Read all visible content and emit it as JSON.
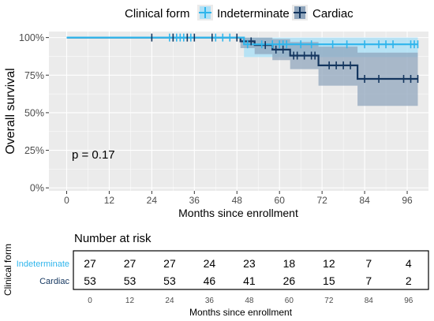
{
  "legend": {
    "title": "Clinical form",
    "items": [
      {
        "label": "Indeterminate",
        "color": "#2fb5ec"
      },
      {
        "label": "Cardiac",
        "color": "#14365f"
      }
    ]
  },
  "annotation": "p = 0.17",
  "colors": {
    "panel": "#ebebeb",
    "grid": "#ffffff",
    "indeterminate_band": "#aee0f6",
    "cardiac_band": "#8ea4bb"
  },
  "chart_data": [
    {
      "type": "line",
      "subtype": "kaplan-meier",
      "xlabel": "Months since enrollment",
      "ylabel": "Overall survival",
      "xlim": [
        -5,
        102
      ],
      "ylim": [
        -0.02,
        1.04
      ],
      "x_ticks": [
        0,
        12,
        24,
        36,
        48,
        60,
        72,
        84,
        96
      ],
      "y_ticks": [
        {
          "value": 0,
          "label": "0%"
        },
        {
          "value": 0.25,
          "label": "25%"
        },
        {
          "value": 0.5,
          "label": "50%"
        },
        {
          "value": 0.75,
          "label": "75%"
        },
        {
          "value": 1,
          "label": "100%"
        }
      ],
      "grid": true,
      "legend_position": "top",
      "series": [
        {
          "name": "Indeterminate",
          "color": "#2fb5ec",
          "x": [
            0,
            50
          ],
          "y": [
            1.0,
            0.955
          ],
          "x_end": 99,
          "ci": {
            "x": [
              0,
              50
            ],
            "lower": [
              1.0,
              0.87
            ],
            "upper": [
              1.0,
              1.0
            ]
          },
          "censored": [
            29,
            30,
            31,
            32,
            33,
            35,
            42,
            44,
            46,
            51,
            55,
            58,
            60,
            61,
            62,
            66,
            69,
            75,
            79,
            84,
            88,
            90,
            92,
            97,
            98,
            99
          ]
        },
        {
          "name": "Cardiac",
          "color": "#14365f",
          "x": [
            0,
            49,
            53,
            58,
            63,
            71,
            82
          ],
          "y": [
            1.0,
            0.975,
            0.95,
            0.92,
            0.88,
            0.815,
            0.725
          ],
          "x_end": 99,
          "ci": {
            "x": [
              0,
              49,
              53,
              58,
              63,
              71,
              82
            ],
            "lower": [
              1.0,
              0.93,
              0.89,
              0.85,
              0.79,
              0.68,
              0.545
            ],
            "upper": [
              1.0,
              1.0,
              1.0,
              0.99,
              0.97,
              0.94,
              0.9
            ]
          },
          "censored": [
            24,
            30,
            34,
            36,
            41,
            48,
            52,
            56,
            59,
            61,
            64,
            65,
            67,
            69,
            70,
            74,
            76,
            78,
            80,
            84,
            88,
            95,
            97,
            99
          ]
        }
      ]
    },
    {
      "type": "table",
      "title": "Number at risk",
      "ylabel": "Clinical form",
      "xlabel": "Months since enrollment",
      "x_ticks": [
        0,
        12,
        24,
        36,
        48,
        60,
        72,
        84,
        96
      ],
      "rows": [
        {
          "label": "Indeterminate",
          "color": "#2fb5ec",
          "values": [
            27,
            27,
            27,
            24,
            23,
            18,
            12,
            7,
            4
          ]
        },
        {
          "label": "Cardiac",
          "color": "#14365f",
          "values": [
            53,
            53,
            53,
            46,
            41,
            26,
            15,
            7,
            2
          ]
        }
      ]
    }
  ]
}
